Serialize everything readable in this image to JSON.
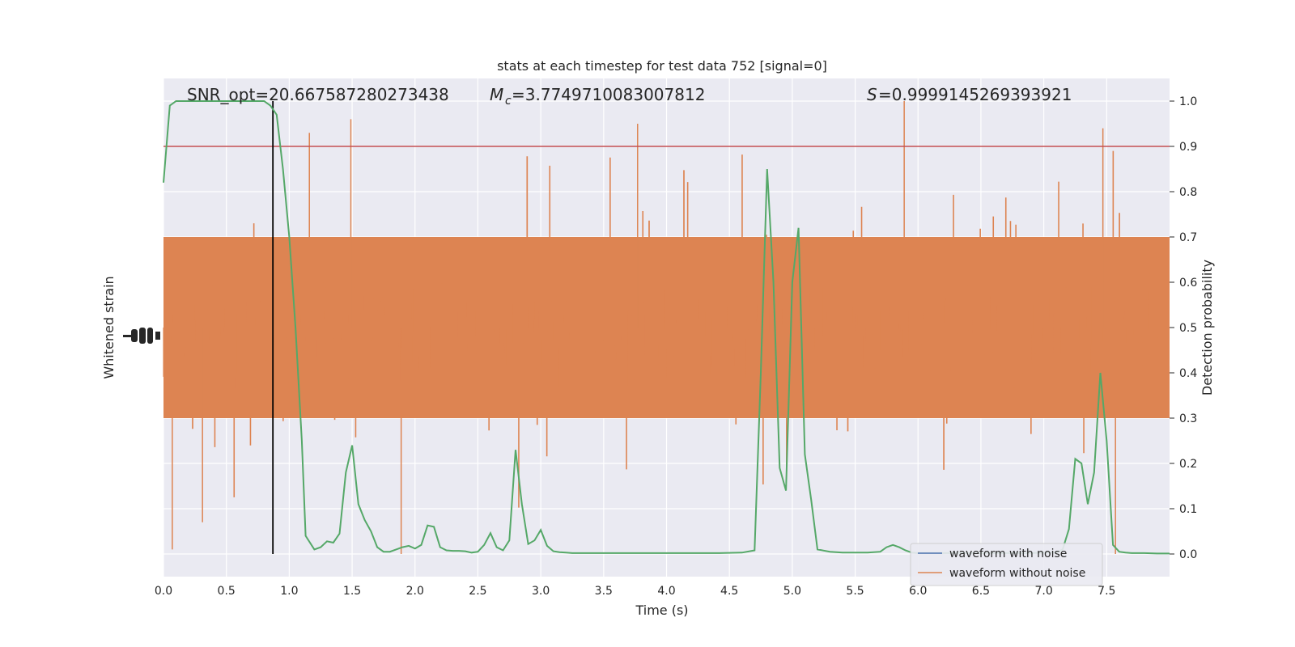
{
  "chart_data": {
    "type": "line",
    "title": "stats at each timestep for test data 752 [signal=0]",
    "xlabel": "Time (s)",
    "ylabel_left": "Whitened strain",
    "ylabel_right": "Detection probability",
    "xlim": [
      0.0,
      8.0
    ],
    "ylim_right": [
      -0.05,
      1.05
    ],
    "x_ticks": [
      "0.0",
      "0.5",
      "1.0",
      "1.5",
      "2.0",
      "2.5",
      "3.0",
      "3.5",
      "4.0",
      "4.5",
      "5.0",
      "5.5",
      "6.0",
      "6.5",
      "7.0",
      "7.5"
    ],
    "x_tick_values": [
      0,
      0.5,
      1,
      1.5,
      2,
      2.5,
      3,
      3.5,
      4,
      4.5,
      5,
      5.5,
      6,
      6.5,
      7,
      7.5
    ],
    "y_right_ticks": [
      "0.0",
      "0.1",
      "0.2",
      "0.3",
      "0.4",
      "0.5",
      "0.6",
      "0.7",
      "0.8",
      "0.9",
      "1.0"
    ],
    "y_right_tick_values": [
      0,
      0.1,
      0.2,
      0.3,
      0.4,
      0.5,
      0.6,
      0.7,
      0.8,
      0.9,
      1.0
    ],
    "annotations": {
      "snr": "SNR_opt=20.667587280273438",
      "mc": "=3.7749710083007812",
      "s": "=0.9999145269393921"
    },
    "threshold": 0.9,
    "vertical_marker_x": 0.87,
    "legend": {
      "position": "lower-right",
      "entries": [
        {
          "label": "waveform with noise",
          "color": "#4c72b0"
        },
        {
          "label": "waveform without noise",
          "color": "#dd8452"
        }
      ]
    },
    "colors": {
      "background": "#eaeaf2",
      "grid": "#ffffff",
      "noise": "#dd8452",
      "probability": "#55a868",
      "threshold": "#c44e52",
      "marker": "#000000"
    },
    "probability_series": {
      "x": [
        0.0,
        0.05,
        0.1,
        0.2,
        0.3,
        0.4,
        0.5,
        0.6,
        0.7,
        0.8,
        0.85,
        0.9,
        0.95,
        1.0,
        1.05,
        1.1,
        1.13,
        1.2,
        1.25,
        1.3,
        1.35,
        1.4,
        1.45,
        1.5,
        1.55,
        1.6,
        1.65,
        1.7,
        1.75,
        1.8,
        1.85,
        1.9,
        1.95,
        2.0,
        2.05,
        2.1,
        2.15,
        2.2,
        2.25,
        2.3,
        2.35,
        2.4,
        2.45,
        2.5,
        2.55,
        2.6,
        2.65,
        2.7,
        2.75,
        2.8,
        2.85,
        2.9,
        2.95,
        3.0,
        3.05,
        3.1,
        3.15,
        3.2,
        3.25,
        3.3,
        3.35,
        3.4,
        3.45,
        3.5,
        3.55,
        3.6,
        3.7,
        3.8,
        3.9,
        4.0,
        4.2,
        4.4,
        4.6,
        4.7,
        4.75,
        4.8,
        4.85,
        4.9,
        4.95,
        5.0,
        5.05,
        5.1,
        5.15,
        5.2,
        5.3,
        5.4,
        5.5,
        5.6,
        5.7,
        5.75,
        5.8,
        5.85,
        5.9,
        5.95,
        6.0,
        6.05,
        6.1,
        6.2,
        6.3,
        6.4,
        6.5,
        6.6,
        6.7,
        6.8,
        6.9,
        7.0,
        7.1,
        7.15,
        7.2,
        7.25,
        7.3,
        7.35,
        7.4,
        7.45,
        7.5,
        7.55,
        7.6,
        7.65,
        7.7,
        7.8,
        7.9,
        8.0
      ],
      "y": [
        0.82,
        0.99,
        1.0,
        1.0,
        1.0,
        1.0,
        1.0,
        1.0,
        1.0,
        1.0,
        0.99,
        0.97,
        0.85,
        0.7,
        0.5,
        0.25,
        0.04,
        0.01,
        0.015,
        0.028,
        0.025,
        0.045,
        0.18,
        0.24,
        0.11,
        0.075,
        0.05,
        0.015,
        0.005,
        0.005,
        0.01,
        0.015,
        0.018,
        0.012,
        0.02,
        0.063,
        0.06,
        0.015,
        0.008,
        0.007,
        0.007,
        0.006,
        0.003,
        0.005,
        0.02,
        0.046,
        0.015,
        0.008,
        0.03,
        0.23,
        0.11,
        0.022,
        0.03,
        0.053,
        0.018,
        0.006,
        0.004,
        0.003,
        0.002,
        0.002,
        0.002,
        0.002,
        0.002,
        0.002,
        0.002,
        0.002,
        0.002,
        0.002,
        0.002,
        0.002,
        0.002,
        0.002,
        0.003,
        0.008,
        0.4,
        0.85,
        0.6,
        0.19,
        0.14,
        0.6,
        0.72,
        0.22,
        0.12,
        0.01,
        0.005,
        0.003,
        0.003,
        0.003,
        0.005,
        0.015,
        0.02,
        0.015,
        0.008,
        0.003,
        0.002,
        0.002,
        0.002,
        0.002,
        0.002,
        0.002,
        0.002,
        0.002,
        0.002,
        0.002,
        0.002,
        0.003,
        0.003,
        0.01,
        0.055,
        0.21,
        0.2,
        0.11,
        0.18,
        0.4,
        0.25,
        0.02,
        0.005,
        0.003,
        0.002,
        0.002,
        0.001,
        0.001
      ]
    },
    "noise_series": {
      "description_envelope_core": [
        0.3,
        0.7
      ],
      "extreme_spikes": [
        {
          "x": 0.07,
          "y": 0.01
        },
        {
          "x": 0.31,
          "y": 0.07
        },
        {
          "x": 1.16,
          "y": 0.93
        },
        {
          "x": 1.49,
          "y": 0.96
        },
        {
          "x": 1.89,
          "y": 0.0
        },
        {
          "x": 3.77,
          "y": 0.95
        },
        {
          "x": 5.89,
          "y": 1.0
        },
        {
          "x": 7.47,
          "y": 0.94
        },
        {
          "x": 7.57,
          "y": 0.0
        }
      ]
    }
  }
}
